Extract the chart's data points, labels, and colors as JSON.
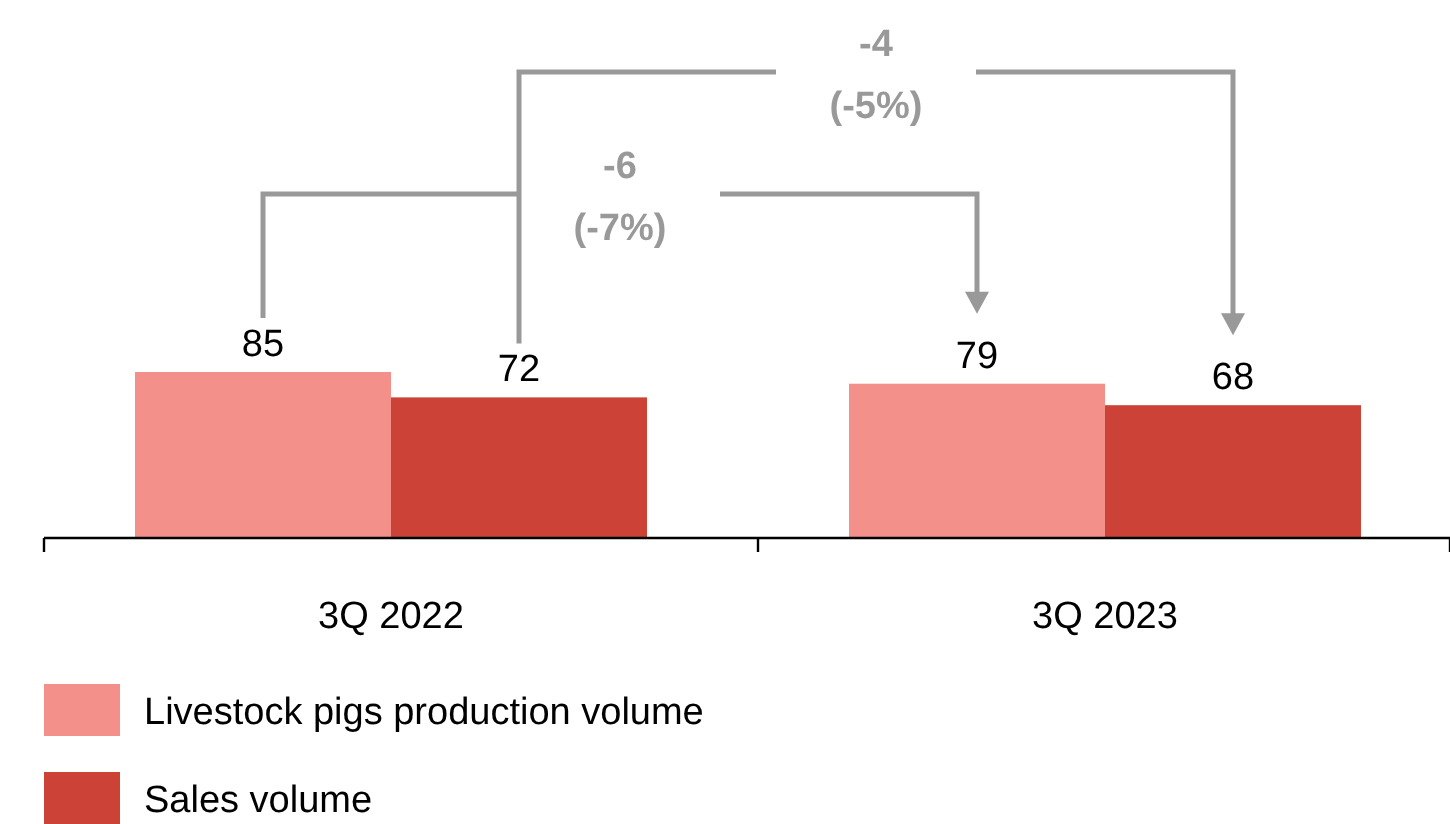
{
  "chart_data": {
    "type": "bar",
    "categories": [
      "3Q 2022",
      "3Q 2023"
    ],
    "series": [
      {
        "name": "Livestock pigs production volume",
        "color": "#f4908a",
        "values": [
          85,
          79
        ]
      },
      {
        "name": "Sales volume",
        "color": "#cc4236",
        "values": [
          72,
          68
        ]
      }
    ],
    "data_labels": true,
    "legend": "bottom",
    "annotations": [
      "-4 (-5%)",
      "-6 (-7%)"
    ]
  }
}
